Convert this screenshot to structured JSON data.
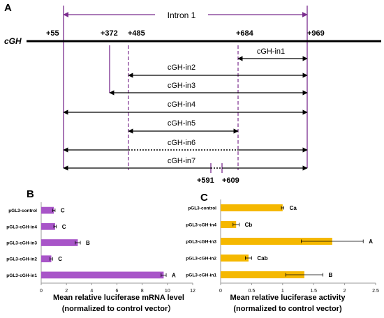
{
  "panel_a": {
    "label": "A",
    "gene": "cGH",
    "intron_label": "Intron 1",
    "positions": {
      "p55": "+55",
      "p372": "+372",
      "p485": "+485",
      "p684": "+684",
      "p969": "+969",
      "p591": "+591",
      "p609": "+609"
    },
    "constructs": [
      "cGH-in1",
      "cGH-in2",
      "cGH-in3",
      "cGH-in4",
      "cGH-in5",
      "cGH-in6",
      "cGH-in7"
    ],
    "colors": {
      "purple": "#7B2D8E",
      "line": "#000000"
    }
  },
  "panel_b": {
    "label": "B",
    "xlabel_line1": "Mean relative luciferase mRNA level",
    "xlabel_line2": "(normalized to control vector）"
  },
  "panel_c": {
    "label": "C",
    "xlabel_line1": "Mean relative luciferase activity",
    "xlabel_line2": "(normalized to control vector)"
  },
  "chart_data": [
    {
      "type": "bar",
      "orientation": "horizontal",
      "categories": [
        "pGL3-control",
        "pGL3-cGH-in4",
        "pGL3-cGH-in3",
        "pGL3-cGH-in2",
        "pGL3-cGH-in1"
      ],
      "values": [
        1.0,
        1.1,
        2.9,
        0.8,
        9.7
      ],
      "errors": [
        0.1,
        0.1,
        0.2,
        0.1,
        0.2
      ],
      "letters": [
        "C",
        "C",
        "B",
        "C",
        "A"
      ],
      "xlim": [
        0,
        12
      ],
      "xticks": [
        "0",
        "2",
        "4",
        "6",
        "8",
        "10",
        "12"
      ],
      "color": "#A855C8",
      "xlabel": "Mean relative luciferase mRNA level (normalized to control vector）"
    },
    {
      "type": "bar",
      "orientation": "horizontal",
      "categories": [
        "pGL3-control",
        "pGL3-cGH-in4",
        "pGL3-cGH-in3",
        "pGL3-cGH-in2",
        "pGL3-cGH-in1"
      ],
      "values": [
        1.0,
        0.25,
        1.8,
        0.45,
        1.35
      ],
      "errors": [
        0.02,
        0.05,
        0.5,
        0.05,
        0.3
      ],
      "letters": [
        "Ca",
        "Cb",
        "A",
        "Cab",
        "B"
      ],
      "xlim": [
        0,
        2.5
      ],
      "xticks": [
        "0",
        "0.5",
        "1",
        "1.5",
        "2",
        "2.5"
      ],
      "color": "#F5B800",
      "xlabel": "Mean relative luciferase activity (normalized to control vector)"
    }
  ]
}
